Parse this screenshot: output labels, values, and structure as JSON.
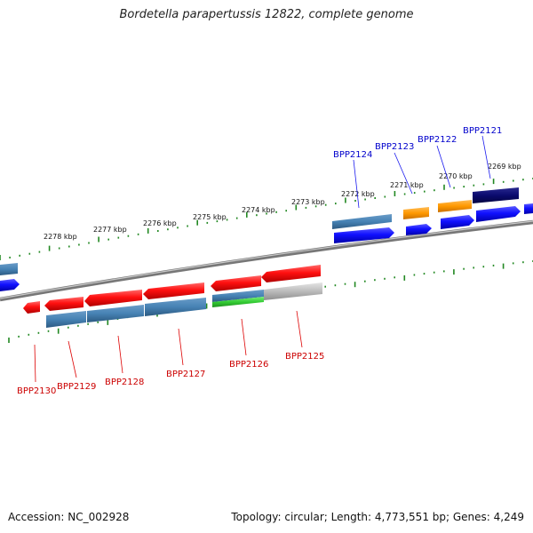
{
  "title": "Bordetella parapertussis 12822, complete genome",
  "footer": {
    "accession": "Accession: NC_002928",
    "summary": "Topology: circular; Length: 4,773,551 bp; Genes: 4,249"
  },
  "ruler_labels": [
    "2278 kbp",
    "2277 kbp",
    "2276 kbp",
    "2275 kbp",
    "2274 kbp",
    "2273 kbp",
    "2272 kbp",
    "2271 kbp",
    "2270 kbp",
    "2269 kbp"
  ],
  "genes_top": [
    "BPP2124",
    "BPP2123",
    "BPP2122",
    "BPP2121"
  ],
  "genes_bottom": [
    "BPP2130",
    "BPP2129",
    "BPP2128",
    "BPP2127",
    "BPP2126",
    "BPP2125"
  ],
  "colors": {
    "cds": "#ff1a1a",
    "cds_fwd": "#1414ff",
    "gene_bar": "#4682b4",
    "orange": "#ff9900",
    "navy": "#0a0a6e",
    "green": "#33cc33",
    "grey": "#bbbbbb",
    "ruler": "#228822",
    "backbone": "#888888"
  }
}
